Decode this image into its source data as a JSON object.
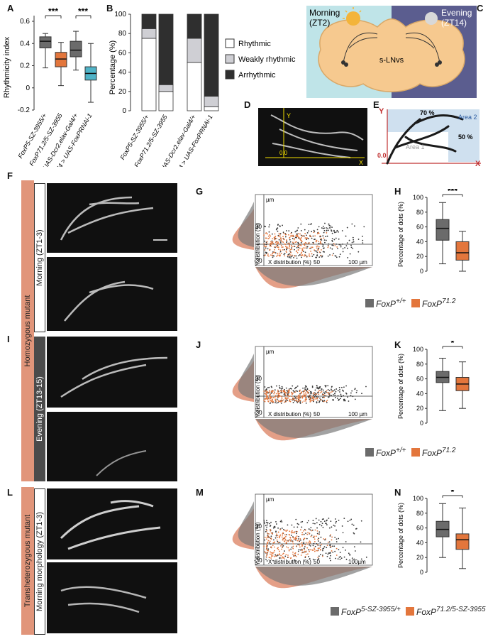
{
  "panels": {
    "A": "A",
    "B": "B",
    "C": "C",
    "D": "D",
    "E": "E",
    "F": "F",
    "G": "G",
    "H": "H",
    "I": "I",
    "J": "J",
    "K": "K",
    "L": "L",
    "M": "M",
    "N": "N"
  },
  "panelA": {
    "ylabel": "Rhythmicity index",
    "yticks": [
      "0.6",
      "0.4",
      "0.2",
      "0",
      "-0.2"
    ],
    "sig": [
      "***",
      "***"
    ],
    "groups": [
      {
        "label": "FoxP5-SZ-3955/+",
        "color": "#6b6b6b",
        "q1": 0.36,
        "median": 0.42,
        "q3": 0.46,
        "min": 0.18,
        "max": 0.49
      },
      {
        "label": "FoxP71.2/5-SZ-3955",
        "color": "#e3763c",
        "q1": 0.19,
        "median": 0.26,
        "q3": 0.32,
        "min": 0.02,
        "max": 0.41
      },
      {
        "label": "UAS-Dcr2.elav-Gal4/+",
        "color": "#6b6b6b",
        "q1": 0.28,
        "median": 0.34,
        "q3": 0.42,
        "min": 0.16,
        "max": 0.51
      },
      {
        "label": "UAS-Dcr2.elav-Gal4 > UAS-FoxPRNAi-1",
        "color": "#4fb3c7",
        "q1": 0.07,
        "median": 0.13,
        "q3": 0.19,
        "min": -0.13,
        "max": 0.4
      }
    ]
  },
  "panelB": {
    "ylabel": "Percentage (%)",
    "yticks": [
      "100",
      "80",
      "60",
      "40",
      "20",
      "0"
    ],
    "groups": [
      "FoxP5-SZ-3955/+",
      "FoxP71.2/5-SZ-3955",
      "UAS-Dcr2.elav-Gal4/+",
      "UAS-Dcr2.elav-Gal4 > UAS-FoxPRNAi-1"
    ],
    "legend": [
      "Rhythmic",
      "Weakly rhythmic",
      "Arrhythmic"
    ]
  },
  "chart_data": [
    {
      "type": "bar",
      "stacked": true,
      "categories": [
        "FoxP5-SZ-3955/+",
        "FoxP71.2/5-SZ-3955",
        "UAS-Dcr2.elav-Gal4/+",
        "UAS-Dcr2.elav-Gal4 > UAS-FoxPRNAi-1"
      ],
      "series": [
        {
          "name": "Rhythmic",
          "values": [
            75,
            20,
            50,
            4
          ],
          "color": "#ffffff"
        },
        {
          "name": "Weakly rhythmic",
          "values": [
            10,
            7,
            25,
            11
          ],
          "color": "#cfcfd4"
        },
        {
          "name": "Arrhythmic",
          "values": [
            15,
            73,
            25,
            85
          ],
          "color": "#2f2f2f"
        }
      ],
      "ylabel": "Percentage (%)",
      "ylim": [
        0,
        100
      ]
    },
    {
      "type": "bar",
      "boxplot": true,
      "panel": "H",
      "categories": [
        "FoxP+/+",
        "FoxP71.2"
      ],
      "series": [
        {
          "name": "FoxP+/+",
          "min": 10,
          "q1": 42,
          "median": 58,
          "q3": 70,
          "max": 93
        },
        {
          "name": "FoxP71.2",
          "min": 0,
          "q1": 15,
          "median": 25,
          "q3": 40,
          "max": 54
        }
      ],
      "ylabel": "Percentage of dots (%)",
      "ylim": [
        0,
        100
      ],
      "significance": "***"
    },
    {
      "type": "bar",
      "boxplot": true,
      "panel": "K",
      "categories": [
        "FoxP+/+",
        "FoxP71.2"
      ],
      "series": [
        {
          "name": "FoxP+/+",
          "min": 17,
          "q1": 55,
          "median": 62,
          "q3": 70,
          "max": 88
        },
        {
          "name": "FoxP71.2",
          "min": 20,
          "q1": 44,
          "median": 53,
          "q3": 62,
          "max": 83
        }
      ],
      "ylabel": "Percentage of dots (%)",
      "ylim": [
        0,
        100
      ],
      "significance": "*"
    },
    {
      "type": "bar",
      "boxplot": true,
      "panel": "N",
      "categories": [
        "FoxP5-SZ-3955/+",
        "FoxP71.2/5-SZ-3955"
      ],
      "series": [
        {
          "name": "FoxP5-SZ-3955/+",
          "min": 20,
          "q1": 48,
          "median": 58,
          "q3": 69,
          "max": 93
        },
        {
          "name": "FoxP71.2/5-SZ-3955",
          "min": 5,
          "q1": 31,
          "median": 44,
          "q3": 52,
          "max": 87
        }
      ],
      "ylabel": "Percentage of dots (%)",
      "ylim": [
        0,
        100
      ],
      "significance": "*"
    }
  ],
  "boxplots": {
    "yticks": [
      "100",
      "80",
      "60",
      "40",
      "20",
      "0"
    ],
    "ylabel": "Percentage of dots (%)"
  },
  "panelC": {
    "morning": "Morning",
    "morning_zt": "(ZT2)",
    "evening": "Evening",
    "evening_zt": "(ZT14)",
    "center": "s-LNvs"
  },
  "panelD": {
    "y": "Y",
    "x": "X",
    "origin": "0.0"
  },
  "panelE": {
    "y": "Y",
    "x": "X",
    "origin": "0.0",
    "pct70": "70 %",
    "pct50": "50 %",
    "area1": "Area 1",
    "area2": "Area 2"
  },
  "scatter": {
    "um": "µm",
    "y_label": "Y distribution (%)",
    "x_label": "X distribution (%)",
    "y30": "30",
    "ym30": "-30",
    "x50": "50",
    "x100": "100 µm",
    "x100b": "100µm"
  },
  "labels": {
    "homozygous": "Homozygous mutant",
    "morning_zt": "Morning (ZT1-3)",
    "evening_zt": "Evening (ZT13-15)",
    "transheterozygous": "Transheterozygous mutant",
    "morning_morph": "Morning morphology (ZT1-3)"
  },
  "legends": {
    "wt_base": "FoxP",
    "wt_sup": "+/+",
    "mut_base": "FoxP",
    "mut_sup": "71.2",
    "het_base": "FoxP",
    "het_sup": "5-SZ-3955/+",
    "th_base": "FoxP",
    "th_sup": "71.2/5-SZ-3955"
  },
  "colors": {
    "gray": "#6b6b6b",
    "orange": "#e3763c",
    "teal": "#4fb3c7",
    "salmon": "#e1957a",
    "brain": "#f6c98f",
    "morning_bg": "#bfe4e8",
    "evening_bg": "#5b5d8f"
  }
}
